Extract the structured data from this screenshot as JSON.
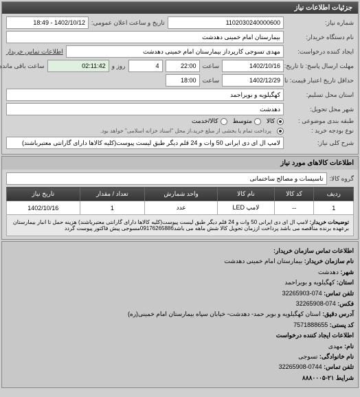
{
  "header": {
    "title": "جزئیات اطلاعات نیاز"
  },
  "form": {
    "req_no_label": "شماره نیاز:",
    "req_no": "1102030240000600",
    "datetime_label": "تاریخ و ساعت اعلان عمومی:",
    "datetime": "1402/10/12 - 18:49",
    "buyer_label": "نام دستگاه خریدار:",
    "buyer": "بیمارستان امام خمینی دهدشت",
    "creator_label": "ایجاد کننده درخواست:",
    "creator": "مهدی تسوجی کارپرداز بیمارستان امام خمینی دهدشت",
    "contact_info_label": "اطلاعات تماس خریدار",
    "deadline_label": "مهلت ارسال پاسخ: تا تاریخ:",
    "deadline_date": "1402/10/16",
    "deadline_time_label": "ساعت",
    "deadline_time": "22:00",
    "days_label": "روز و",
    "days": "4",
    "remain_label": "ساعت باقی مانده",
    "remain": "02:11:42",
    "validity_label": "حداقل تاریخ اعتبار قیمت: تا تاریخ:",
    "validity_date": "1402/12/29",
    "validity_time_label": "ساعت",
    "validity_time": "18:00",
    "province_label": "استان محل تسلیم:",
    "province": "کهگیلویه و بویراحمد",
    "city_label": "شهر محل تحویل:",
    "city": "دهدشت",
    "budget_label": "طبقه بندی موضوعی :",
    "budget_opts": [
      "کالا",
      "متوسط",
      "کالا/خدمت"
    ],
    "payment_label": "نوع بودجه خرید :",
    "payment_text": "پرداخت تمام یا بخشی از مبلغ خرید،از محل \"اسناد خزانه اسلامی\" خواهد بود.",
    "desc_label": "شرح کلی نیاز:",
    "description": "لامپ ال ای دی ایرانی 50 وات و 24 قلم دیگر طبق لیست پیوست(کلیه کالاها دارای گارانتی معتبرباشند)"
  },
  "goods": {
    "section_title": "اطلاعات کالاهای مورد نیاز",
    "group_label": "گروه کالا:",
    "group": "تاسیسات و مصالح ساختمانی",
    "table": {
      "headers": [
        "ردیف",
        "کد کالا",
        "نام کالا",
        "واحد شمارش",
        "تعداد / مقدار",
        "تاریخ نیاز"
      ],
      "row": [
        "1",
        "--",
        "لامپ LED",
        "عدد",
        "1",
        "1402/10/16"
      ],
      "buyer_desc_label": "توضیحات خریدار:",
      "buyer_desc": "لامپ ال ای دی ایرانی 50 وات و 24 قلم دیگر طبق لیست پیوست(کلیه کالاها دارای گارانتی معتبرباشند) هزینه حمل تا انبار بیمارستان برعهده برنده مناقصه می باشد پرداخت اززمان تحویل کالا شش ماهه می باشد09176265886مسوجی پیش فاکتور پیوست گردد"
    }
  },
  "contact": {
    "title": "اطلاعات تماس سازمان خریدار:",
    "org_label": "نام سازمان خریدار:",
    "org": "بیمارستان امام خمینی دهدشت",
    "city_label": "شهر:",
    "city": "دهدشت",
    "province_label": "استان:",
    "province": "کهگیلویه و بویراحمد",
    "phone_label": "تلفن تماس:",
    "phone": "074-32265903",
    "fax_label": "فکس:",
    "fax": "074-32265908",
    "address_label": "آدرس دقیق:",
    "address": "استان کهگیلویه و بویر حمد- دهدشت- خیابان سپاه بیمارستان امام خمینی(ره)",
    "postal_label": "کد پستی:",
    "postal": "7571888655",
    "creator_title": "اطلاعات ایجاد کننده درخواست",
    "name_label": "نام:",
    "name": "مهدی",
    "lname_label": "نام خانوادگی:",
    "lname": "تسوجی",
    "cphone_label": "تلفن تماس:",
    "cphone": "0744-32265908",
    "conditions_label": "شرایط ۲۱-۸۸۸۰۰۰۵"
  }
}
